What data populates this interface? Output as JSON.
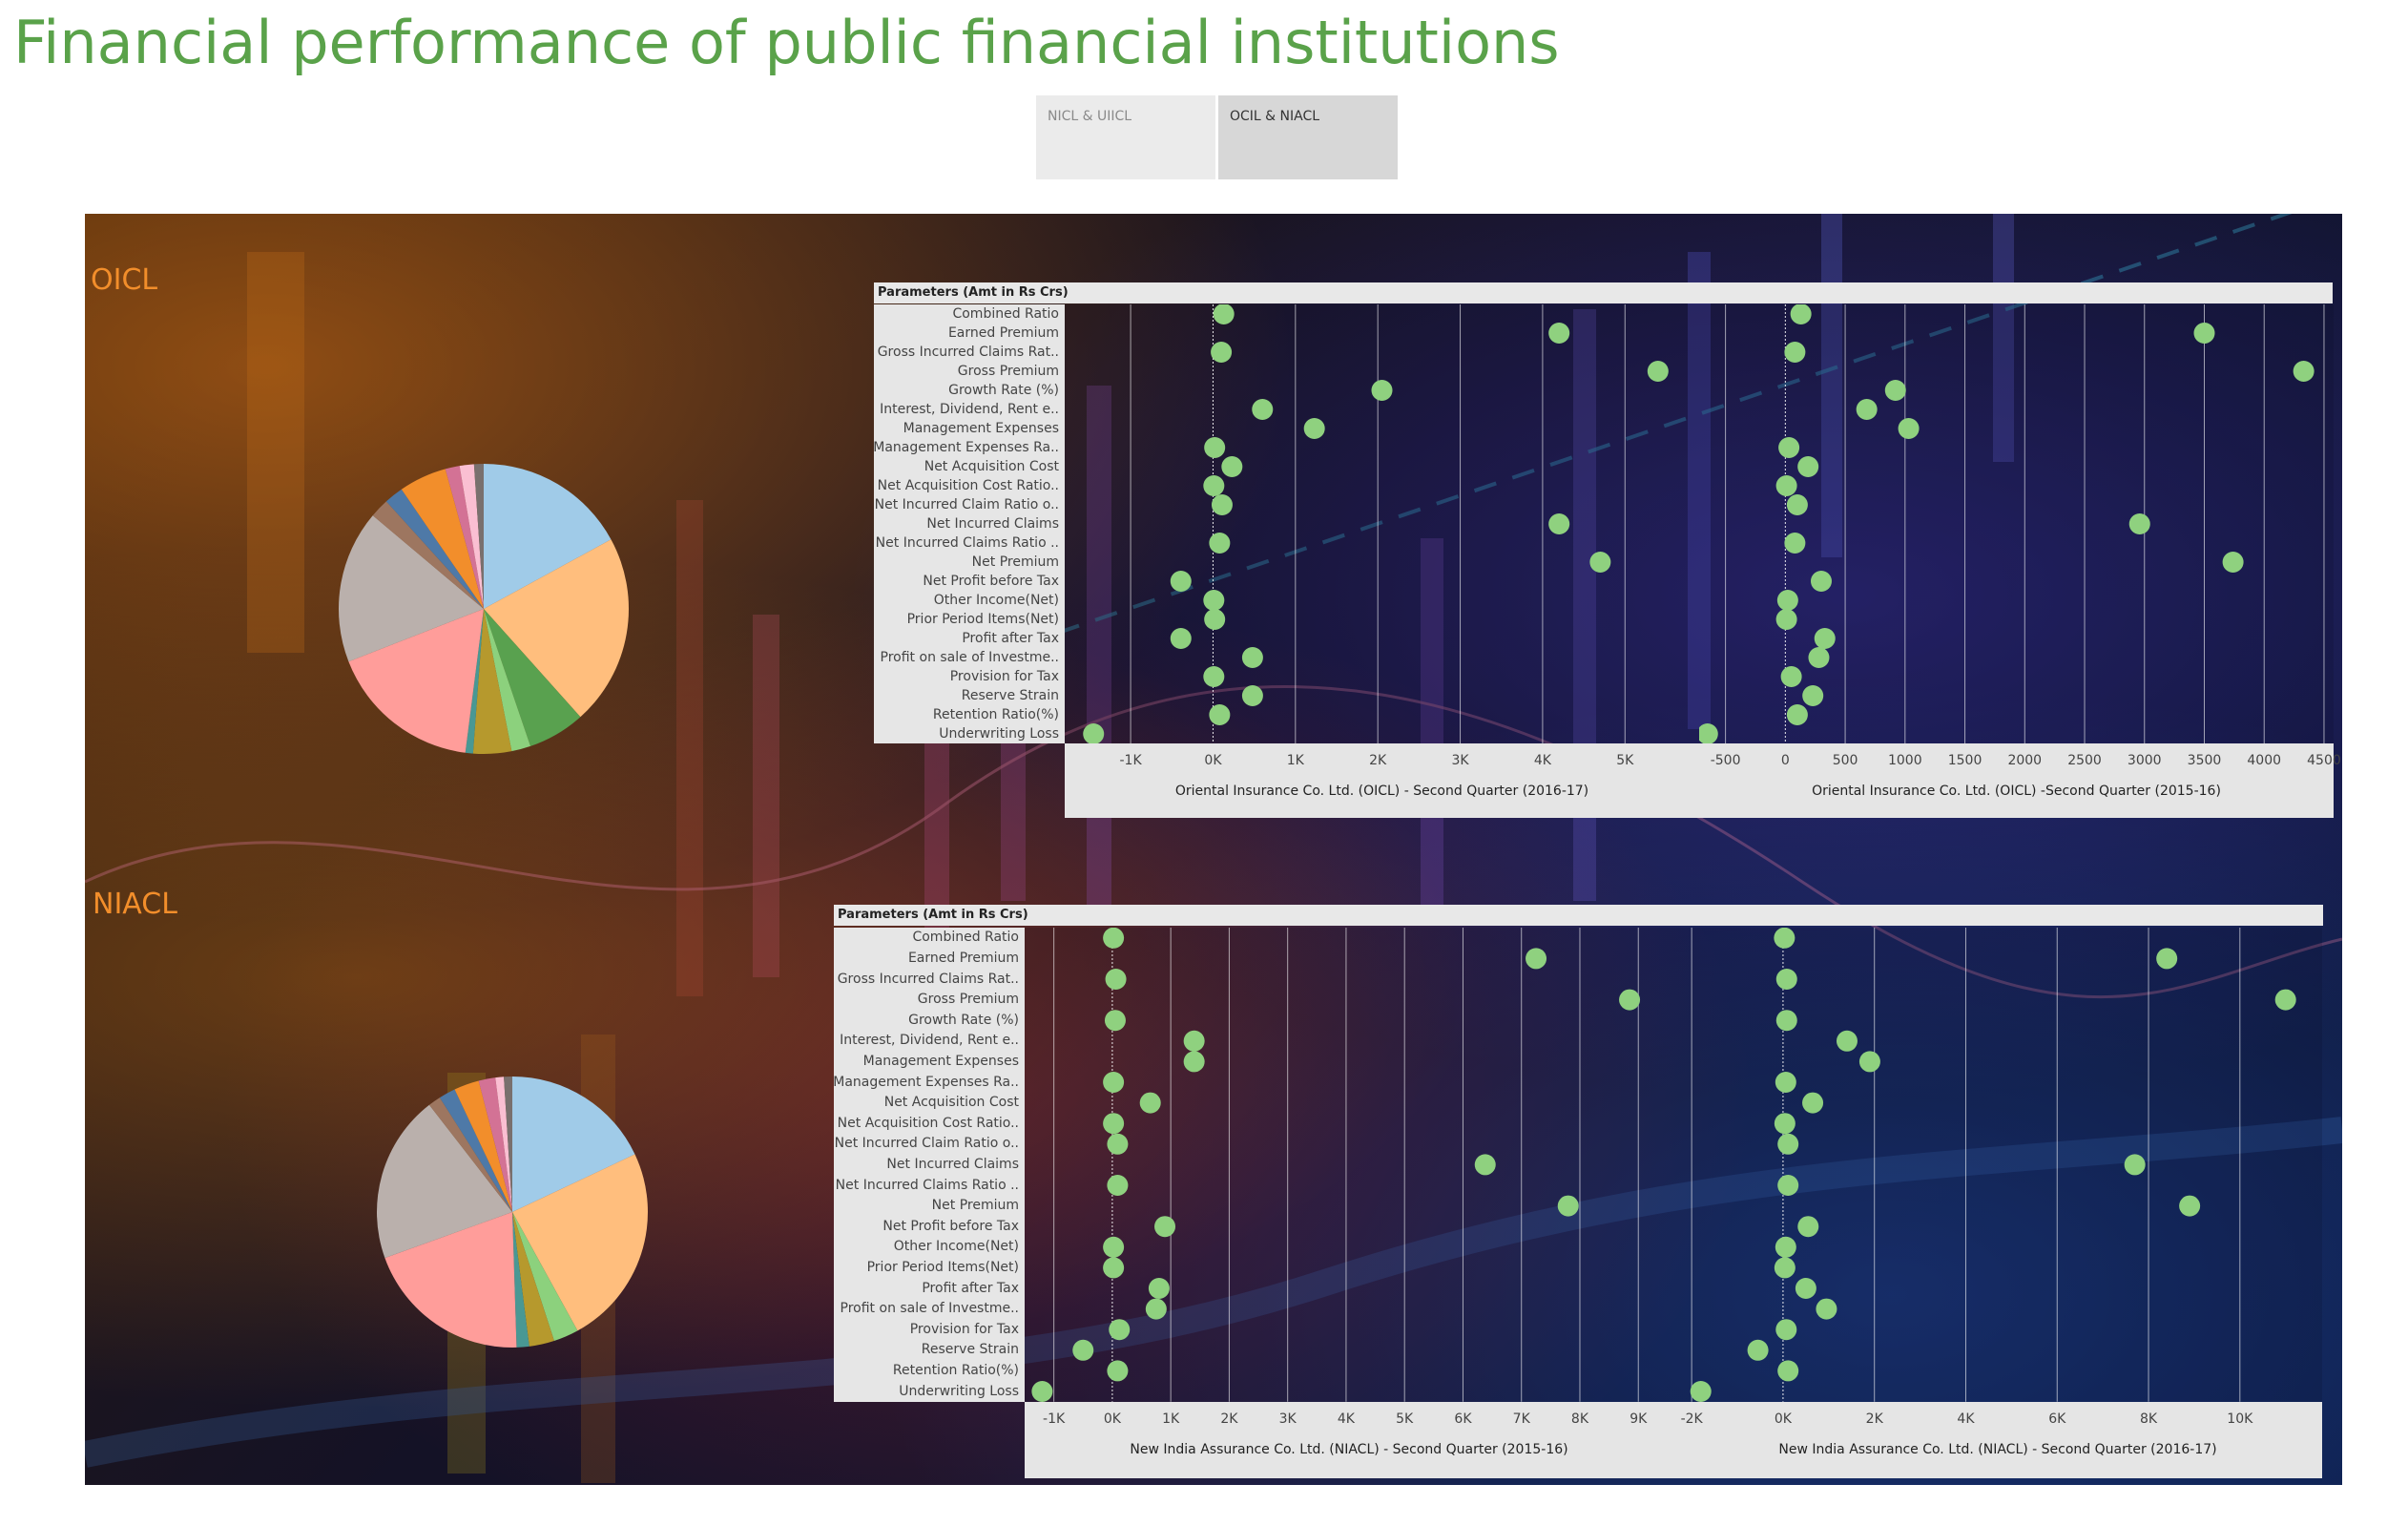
{
  "title": "Financial performance of public financial institutions",
  "tabs": [
    {
      "label": "NICL & UIICL",
      "selected": false
    },
    {
      "label": "OCIL & NIACL",
      "selected": true
    }
  ],
  "colors": {
    "title": "#5aa24a",
    "section_label": "#f28e2b",
    "dot": "#8fd17f",
    "pie_palette": [
      "#a0cbe8",
      "#ffbe7d",
      "#59a14f",
      "#8cd17d",
      "#b6992d",
      "#499894",
      "#ff9d9a",
      "#bab0ac",
      "#9d7660",
      "#4e79a7",
      "#f28e2b",
      "#d37295",
      "#fabfd2",
      "#79706e"
    ]
  },
  "sections": {
    "oicl": "OICL",
    "niacl": "NIACL"
  },
  "pie_oicl": [
    16,
    20,
    6,
    2,
    4,
    0.8,
    16,
    16,
    2,
    2,
    5,
    1.5,
    1.5,
    1
  ],
  "pie_niacl": [
    18,
    24,
    0,
    3,
    3,
    1.5,
    20,
    20,
    1.5,
    2,
    3,
    2,
    1,
    1
  ],
  "oicl_panel": {
    "header": "Parameters (Amt in Rs Crs)",
    "parameters": [
      "Combined Ratio",
      "Earned Premium",
      "Gross Incurred Claims Rat..",
      "Gross Premium",
      "Growth Rate (%)",
      "Interest, Dividend, Rent e..",
      "Management Expenses",
      "Management Expenses Ra..",
      "Net Acquisition Cost",
      "Net Acquisition Cost Ratio..",
      "Net Incurred Claim Ratio o..",
      "Net Incurred Claims",
      "Net Incurred Claims Ratio ..",
      "Net Premium",
      "Net Profit before Tax",
      "Other Income(Net)",
      "Prior Period Items(Net)",
      "Profit after Tax",
      "Profit on sale of Investme..",
      "Provision for Tax",
      "Reserve Strain",
      "Retention Ratio(%)",
      "Underwriting Loss"
    ],
    "charts": [
      {
        "title": "Oriental Insurance Co. Ltd. (OICL) - Second Quarter (2016-17)",
        "xmin": -1800,
        "xmax": 5900,
        "zero": 0,
        "ticks": [
          {
            "v": -1000,
            "label": "-1K"
          },
          {
            "v": 0,
            "label": "0K"
          },
          {
            "v": 1000,
            "label": "1K"
          },
          {
            "v": 2000,
            "label": "2K"
          },
          {
            "v": 3000,
            "label": "3K"
          },
          {
            "v": 4000,
            "label": "4K"
          },
          {
            "v": 5000,
            "label": "5K"
          }
        ],
        "values": [
          130,
          4200,
          100,
          5400,
          2050,
          600,
          1230,
          20,
          230,
          10,
          110,
          4200,
          80,
          4700,
          -390,
          10,
          20,
          -390,
          480,
          10,
          480,
          80,
          -1450
        ]
      },
      {
        "title": "Oriental Insurance Co. Ltd. (OICL) -Second Quarter (2015-16)",
        "xmin": -720,
        "xmax": 4580,
        "zero": 0,
        "ticks": [
          {
            "v": -500,
            "label": "-500"
          },
          {
            "v": 0,
            "label": "0"
          },
          {
            "v": 500,
            "label": "500"
          },
          {
            "v": 1000,
            "label": "1000"
          },
          {
            "v": 1500,
            "label": "1500"
          },
          {
            "v": 2000,
            "label": "2000"
          },
          {
            "v": 2500,
            "label": "2500"
          },
          {
            "v": 3000,
            "label": "3000"
          },
          {
            "v": 3500,
            "label": "3500"
          },
          {
            "v": 4000,
            "label": "4000"
          },
          {
            "v": 4500,
            "label": "4500"
          }
        ],
        "values": [
          130,
          3500,
          80,
          4330,
          920,
          680,
          1030,
          30,
          190,
          10,
          100,
          2960,
          80,
          3740,
          300,
          20,
          10,
          330,
          280,
          50,
          230,
          100,
          -650
        ]
      }
    ]
  },
  "niacl_panel": {
    "header": "Parameters (Amt in Rs Crs)",
    "parameters": [
      "Combined Ratio",
      "Earned Premium",
      "Gross Incurred Claims Rat..",
      "Gross Premium",
      "Growth Rate (%)",
      "Interest, Dividend, Rent e..",
      "Management Expenses",
      "Management Expenses Ra..",
      "Net Acquisition Cost",
      "Net Acquisition Cost Ratio..",
      "Net Incurred Claim Ratio o..",
      "Net Incurred Claims",
      "Net Incurred Claims Ratio ..",
      "Net Premium",
      "Net Profit before Tax",
      "Other Income(Net)",
      "Prior Period Items(Net)",
      "Profit after Tax",
      "Profit on sale of Investme..",
      "Provision for Tax",
      "Reserve Strain",
      "Retention Ratio(%)",
      "Underwriting Loss"
    ],
    "charts": [
      {
        "title": "New India Assurance Co. Ltd. (NIACL) - Second Quarter (2015-16)",
        "xmin": -1500,
        "xmax": 9600,
        "zero": 0,
        "ticks": [
          {
            "v": -1000,
            "label": "-1K"
          },
          {
            "v": 0,
            "label": "0K"
          },
          {
            "v": 1000,
            "label": "1K"
          },
          {
            "v": 2000,
            "label": "2K"
          },
          {
            "v": 3000,
            "label": "3K"
          },
          {
            "v": 4000,
            "label": "4K"
          },
          {
            "v": 5000,
            "label": "5K"
          },
          {
            "v": 6000,
            "label": "6K"
          },
          {
            "v": 7000,
            "label": "7K"
          },
          {
            "v": 8000,
            "label": "8K"
          },
          {
            "v": 9000,
            "label": "9K"
          }
        ],
        "values": [
          20,
          7250,
          60,
          8850,
          50,
          1400,
          1400,
          20,
          650,
          20,
          90,
          6380,
          90,
          7800,
          900,
          20,
          20,
          800,
          750,
          120,
          -500,
          90,
          -1200
        ]
      },
      {
        "title": "New India Assurance Co. Ltd. (NIACL) - Second Quarter (2016-17)",
        "xmin": -2400,
        "xmax": 11800,
        "zero": 0,
        "ticks": [
          {
            "v": -2000,
            "label": "-2K"
          },
          {
            "v": 0,
            "label": "0K"
          },
          {
            "v": 2000,
            "label": "2K"
          },
          {
            "v": 4000,
            "label": "4K"
          },
          {
            "v": 6000,
            "label": "6K"
          },
          {
            "v": 8000,
            "label": "8K"
          },
          {
            "v": 10000,
            "label": "10K"
          }
        ],
        "values": [
          30,
          8400,
          80,
          11000,
          80,
          1400,
          1900,
          60,
          650,
          40,
          110,
          7700,
          110,
          8900,
          550,
          60,
          40,
          500,
          950,
          70,
          -550,
          110,
          -1800
        ]
      }
    ]
  }
}
